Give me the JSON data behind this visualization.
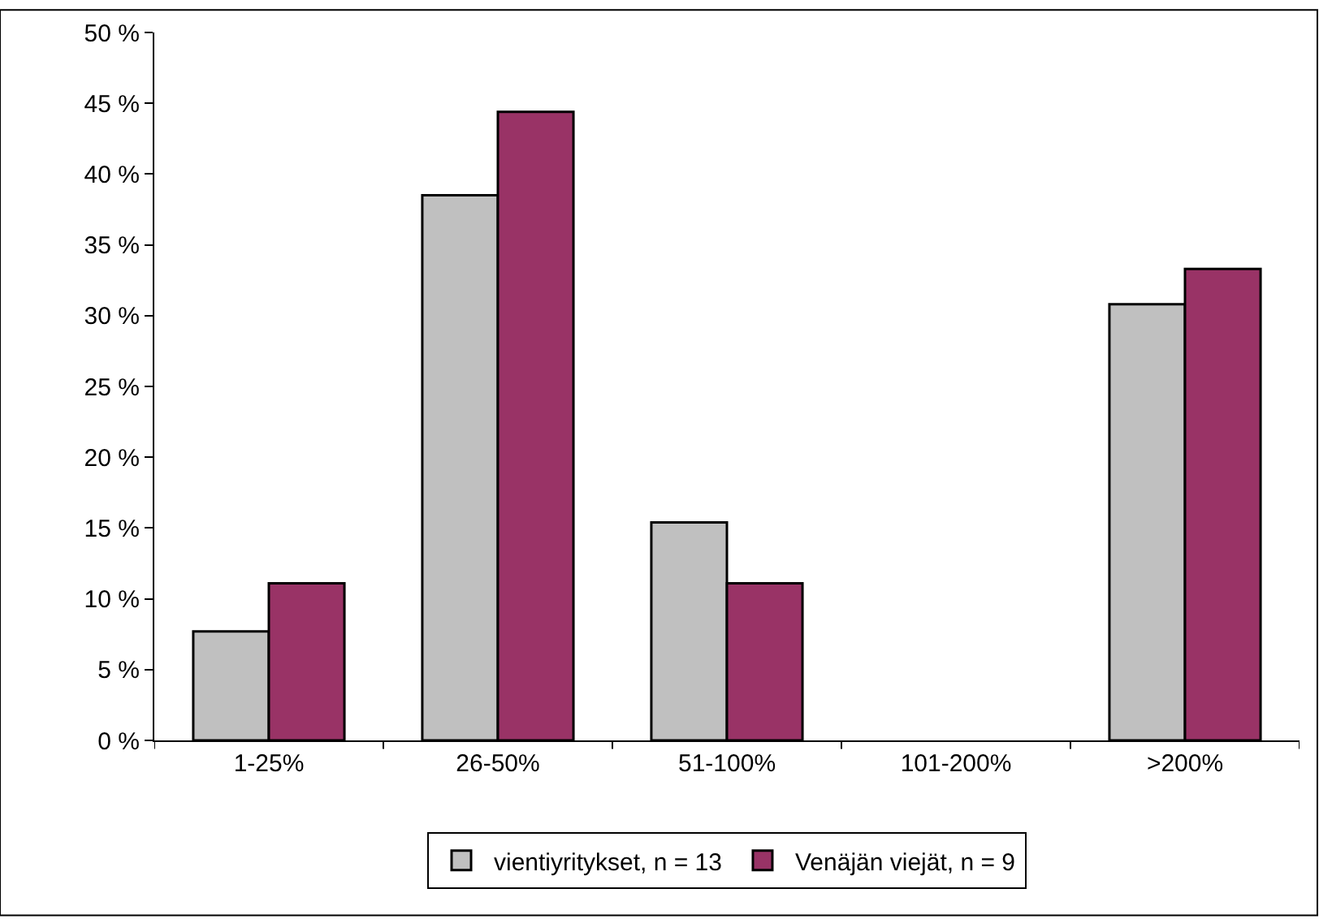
{
  "chart_data": {
    "type": "bar",
    "categories": [
      "1-25%",
      "26-50%",
      "51-100%",
      "101-200%",
      ">200%"
    ],
    "series": [
      {
        "name": "vientiyritykset, n = 13",
        "color": "#c0c0c0",
        "values": [
          7.7,
          38.5,
          15.4,
          0,
          30.8
        ]
      },
      {
        "name": "Venäjän viejät, n = 9",
        "color": "#993366",
        "values": [
          11.1,
          44.4,
          11.1,
          0,
          33.3
        ]
      }
    ],
    "ylim": [
      0,
      50
    ],
    "yticks": [
      {
        "value": 0,
        "label": "0 %"
      },
      {
        "value": 5,
        "label": "5 %"
      },
      {
        "value": 10,
        "label": "10 %"
      },
      {
        "value": 15,
        "label": "15 %"
      },
      {
        "value": 20,
        "label": "20 %"
      },
      {
        "value": 25,
        "label": "25 %"
      },
      {
        "value": 30,
        "label": "30 %"
      },
      {
        "value": 35,
        "label": "35 %"
      },
      {
        "value": 40,
        "label": "40 %"
      },
      {
        "value": 45,
        "label": "45 %"
      },
      {
        "value": 50,
        "label": "50 %"
      }
    ],
    "grid": false,
    "legend": "bottom"
  }
}
